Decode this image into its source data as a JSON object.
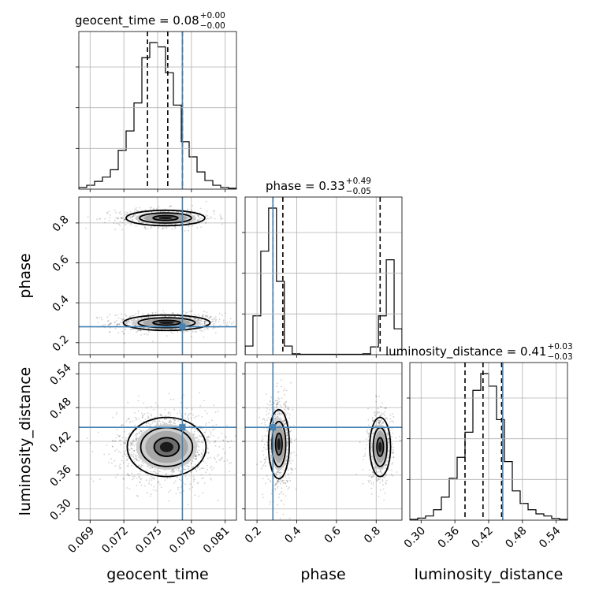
{
  "chart_data": {
    "type": "corner",
    "parameters": [
      "geocent_time",
      "phase",
      "luminosity_distance"
    ],
    "titles": [
      {
        "param": "geocent_time",
        "label": "geocent_time = 0.08",
        "median": "0.08",
        "plus": "+0.00",
        "minus": "−0.00"
      },
      {
        "param": "phase",
        "label": "phase = 0.33",
        "median": "0.33",
        "plus": "+0.49",
        "minus": "−0.05"
      },
      {
        "param": "luminosity_distance",
        "label": "luminosity_distance = 0.41",
        "median": "0.41",
        "plus": "+0.03",
        "minus": "−0.03"
      }
    ],
    "axes": {
      "geocent_time": {
        "range": [
          0.068,
          0.082
        ],
        "ticks": [
          0.069,
          0.072,
          0.075,
          0.078,
          0.081
        ],
        "tick_labels": [
          "0.069",
          "0.072",
          "0.075",
          "0.078",
          "0.081"
        ]
      },
      "phase": {
        "range": [
          0.14,
          0.93
        ],
        "ticks": [
          0.2,
          0.4,
          0.6,
          0.8
        ],
        "tick_labels": [
          "0.2",
          "0.4",
          "0.6",
          "0.8"
        ]
      },
      "luminosity_distance": {
        "range": [
          0.28,
          0.56
        ],
        "ticks": [
          0.3,
          0.36,
          0.42,
          0.48,
          0.54
        ],
        "tick_labels": [
          "0.30",
          "0.36",
          "0.42",
          "0.48",
          "0.54"
        ]
      }
    },
    "truths": {
      "geocent_time": 0.0772,
      "phase": 0.28,
      "luminosity_distance": 0.445
    },
    "quantiles": {
      "geocent_time": [
        0.0741,
        0.0759,
        0.0772
      ],
      "phase": [
        0.28,
        0.33,
        0.82
      ],
      "luminosity_distance": [
        0.378,
        0.41,
        0.443
      ]
    },
    "histograms": {
      "geocent_time": {
        "edges_start": 0.068,
        "bin_width": 0.0007,
        "values": [
          0.4,
          0.9,
          1.8,
          2.8,
          4.5,
          9.0,
          13.5,
          20.0,
          30.5,
          34.0,
          33.0,
          27.0,
          19.5,
          11.0,
          7.5,
          4.0,
          2.0,
          0.9,
          0.4,
          0.2
        ]
      },
      "phase": {
        "edges_start": 0.14,
        "bin_width": 0.0395,
        "values": [
          2.0,
          9.0,
          24.0,
          34.0,
          17.0,
          2.0,
          0.2,
          0.1,
          0.1,
          0.1,
          0.1,
          0.1,
          0.1,
          0.1,
          0.1,
          0.2,
          1.8,
          9.0,
          22.0,
          6.0
        ]
      },
      "luminosity_distance": {
        "edges_start": 0.28,
        "bin_width": 0.014,
        "values": [
          0.2,
          0.5,
          1.0,
          2.5,
          5.5,
          10.0,
          15.0,
          21.0,
          31.0,
          35.0,
          32.0,
          24.0,
          14.0,
          7.0,
          4.0,
          2.5,
          1.5,
          1.0,
          0.4,
          0.2
        ]
      }
    },
    "modes_2d": [
      {
        "x": "geocent_time",
        "y": "phase",
        "modes": [
          {
            "cx": 0.0758,
            "cy": 0.3,
            "sx": 0.0022,
            "sy": 0.022,
            "weight": 0.6
          },
          {
            "cx": 0.0757,
            "cy": 0.825,
            "sx": 0.002,
            "sy": 0.022,
            "weight": 0.4
          }
        ]
      },
      {
        "x": "geocent_time",
        "y": "luminosity_distance",
        "modes": [
          {
            "cx": 0.0758,
            "cy": 0.41,
            "sx": 0.002,
            "sy": 0.03,
            "weight": 1.0
          }
        ]
      },
      {
        "x": "phase",
        "y": "luminosity_distance",
        "modes": [
          {
            "cx": 0.31,
            "cy": 0.415,
            "sx": 0.03,
            "sy": 0.035,
            "weight": 0.6
          },
          {
            "cx": 0.82,
            "cy": 0.41,
            "sx": 0.03,
            "sy": 0.03,
            "weight": 0.4
          }
        ]
      }
    ],
    "xlabel_bottom": [
      "geocent_time",
      "phase",
      "luminosity_distance"
    ],
    "ylabel_left": [
      "phase",
      "luminosity_distance"
    ],
    "grid": true,
    "truth_color": "#4682b4",
    "contour_color": "#000000"
  }
}
